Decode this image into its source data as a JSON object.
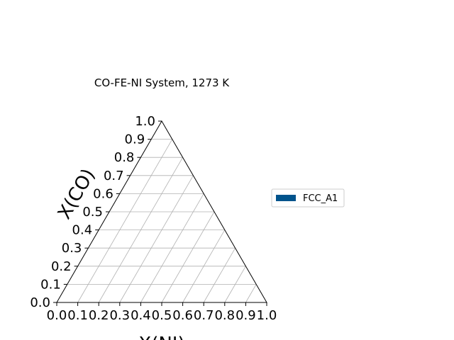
{
  "chart_data": {
    "type": "ternary",
    "title": "CO-FE-NI System, 1273 K",
    "components": [
      "CO",
      "FE",
      "NI"
    ],
    "ylabel": "X(CO)",
    "xlabel": "X(NI)",
    "ticks": [
      "0.0",
      "0.1",
      "0.2",
      "0.3",
      "0.4",
      "0.5",
      "0.6",
      "0.7",
      "0.8",
      "0.9",
      "1.0"
    ],
    "tick_values": [
      0,
      0.1,
      0.2,
      0.3,
      0.4,
      0.5,
      0.6,
      0.7,
      0.8,
      0.9,
      1.0
    ],
    "xlim": [
      0,
      1
    ],
    "ylim": [
      0,
      1
    ],
    "grid": true,
    "grid_color": "#b0b0b0",
    "legend": {
      "position": "right",
      "entries": [
        {
          "label": "FCC_A1",
          "color": "#00538c"
        }
      ]
    },
    "series": []
  }
}
